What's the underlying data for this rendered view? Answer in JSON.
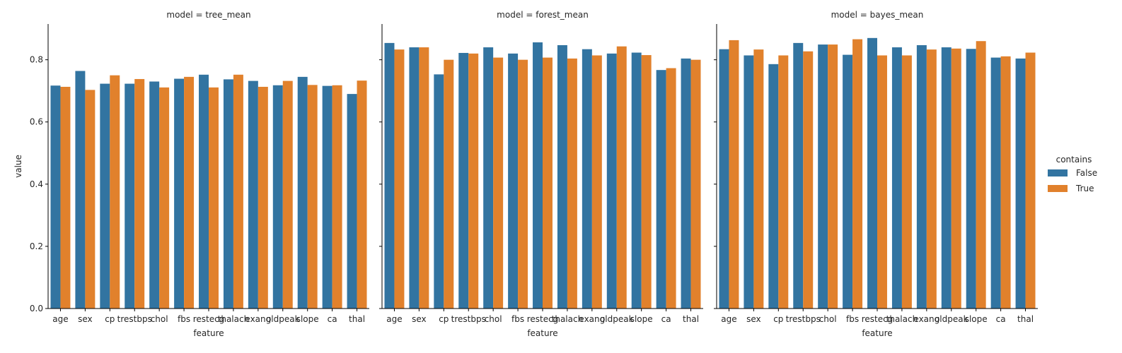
{
  "chart_data": {
    "type": "bar",
    "categories": [
      "age",
      "sex",
      "cp",
      "trestbps",
      "chol",
      "fbs",
      "restecg",
      "thalach",
      "exang",
      "oldpeak",
      "slope",
      "ca",
      "thal"
    ],
    "ylabel": "value",
    "xlabel": "feature",
    "ylim": [
      0,
      0.915
    ],
    "yticks": [
      "0.0",
      "0.2",
      "0.4",
      "0.6",
      "0.8"
    ],
    "grid": false,
    "legend": {
      "title": "contains",
      "placement": "right",
      "entries": [
        {
          "label": "False",
          "color": "#3274a1"
        },
        {
          "label": "True",
          "color": "#e1812c"
        }
      ]
    },
    "facets": [
      {
        "title": "model = tree_mean",
        "series": [
          {
            "name": "False",
            "values": [
              0.717,
              0.764,
              0.723,
              0.723,
              0.73,
              0.739,
              0.752,
              0.737,
              0.732,
              0.718,
              0.745,
              0.716,
              0.69
            ]
          },
          {
            "name": "True",
            "values": [
              0.713,
              0.703,
              0.75,
              0.738,
              0.711,
              0.745,
              0.711,
              0.752,
              0.713,
              0.732,
              0.719,
              0.718,
              0.733
            ]
          }
        ]
      },
      {
        "title": "model = forest_mean",
        "series": [
          {
            "name": "False",
            "values": [
              0.854,
              0.84,
              0.753,
              0.822,
              0.84,
              0.82,
              0.856,
              0.847,
              0.834,
              0.82,
              0.823,
              0.767,
              0.804
            ]
          },
          {
            "name": "True",
            "values": [
              0.833,
              0.84,
              0.8,
              0.82,
              0.807,
              0.8,
              0.807,
              0.804,
              0.814,
              0.843,
              0.815,
              0.773,
              0.8
            ]
          }
        ]
      },
      {
        "title": "model = bayes_mean",
        "series": [
          {
            "name": "False",
            "values": [
              0.834,
              0.814,
              0.786,
              0.854,
              0.849,
              0.816,
              0.87,
              0.84,
              0.847,
              0.84,
              0.835,
              0.807,
              0.804
            ]
          },
          {
            "name": "True",
            "values": [
              0.863,
              0.833,
              0.814,
              0.827,
              0.849,
              0.866,
              0.814,
              0.814,
              0.833,
              0.836,
              0.86,
              0.811,
              0.823
            ]
          }
        ]
      }
    ]
  }
}
